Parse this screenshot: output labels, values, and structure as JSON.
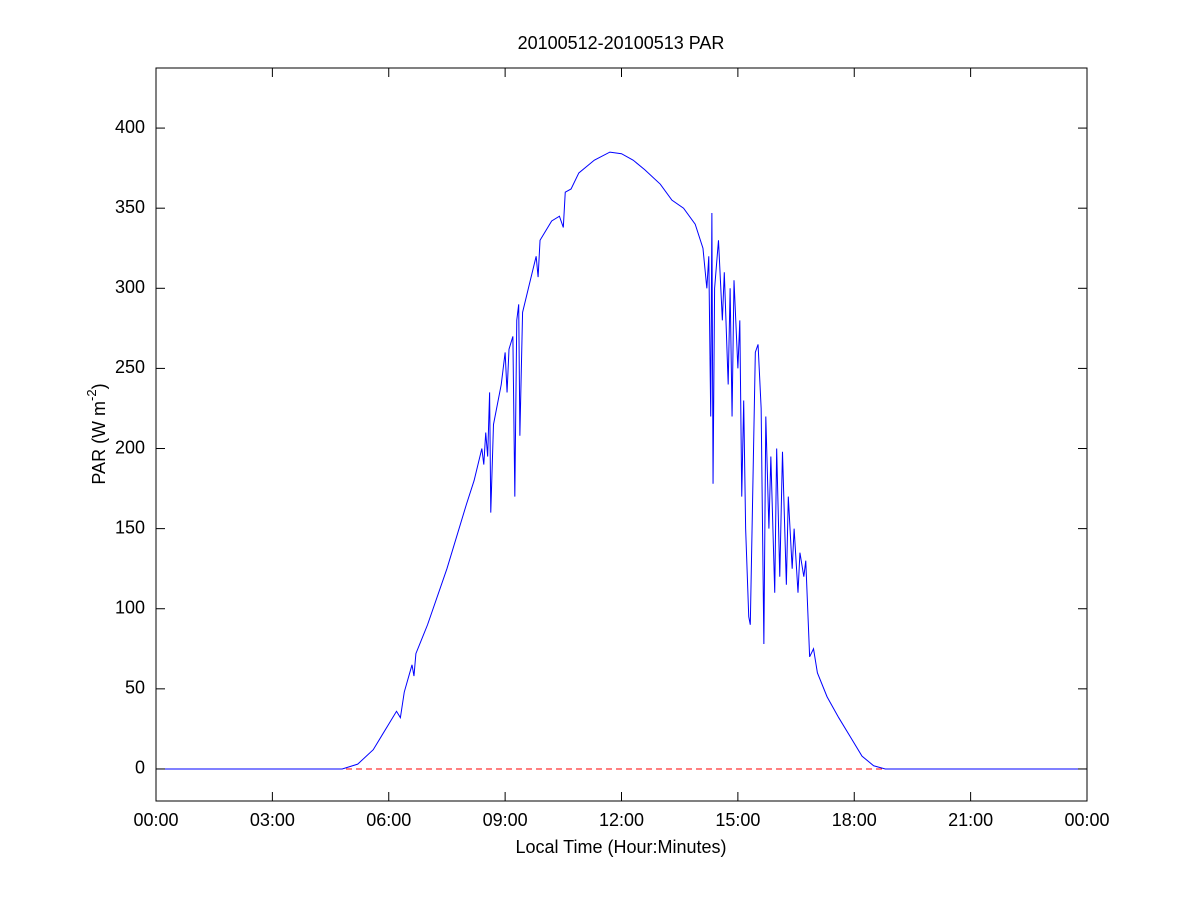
{
  "chart_data": {
    "type": "line",
    "title": "20100512-20100513 PAR",
    "xlabel": "Local Time (Hour:Minutes)",
    "ylabel": {
      "text": "PAR (W m",
      "superscript": "-2",
      "suffix": ")"
    },
    "x": [
      0,
      4.8,
      5.2,
      5.6,
      6.0,
      6.2,
      6.3,
      6.4,
      6.6,
      6.65,
      6.7,
      7.0,
      7.5,
      8.0,
      8.2,
      8.4,
      8.45,
      8.5,
      8.55,
      8.6,
      8.63,
      8.7,
      8.9,
      9.0,
      9.05,
      9.1,
      9.2,
      9.25,
      9.3,
      9.35,
      9.38,
      9.45,
      9.6,
      9.8,
      9.85,
      9.9,
      10.2,
      10.4,
      10.5,
      10.55,
      10.7,
      10.9,
      11.3,
      11.7,
      12.0,
      12.3,
      12.6,
      13.0,
      13.3,
      13.6,
      13.9,
      14.1,
      14.2,
      14.25,
      14.3,
      14.33,
      14.36,
      14.4,
      14.5,
      14.6,
      14.65,
      14.75,
      14.8,
      14.85,
      14.9,
      15.0,
      15.05,
      15.1,
      15.15,
      15.2,
      15.28,
      15.32,
      15.45,
      15.52,
      15.6,
      15.67,
      15.72,
      15.8,
      15.85,
      15.95,
      16.0,
      16.08,
      16.15,
      16.25,
      16.3,
      16.4,
      16.45,
      16.55,
      16.6,
      16.7,
      16.75,
      16.85,
      16.95,
      17.05,
      17.3,
      17.6,
      17.9,
      18.2,
      18.5,
      18.8,
      24
    ],
    "series": [
      {
        "name": "PAR",
        "color": "#0000ff",
        "values": [
          0,
          0,
          3,
          12,
          28,
          36,
          32,
          48,
          65,
          58,
          72,
          90,
          125,
          165,
          180,
          200,
          190,
          210,
          195,
          235,
          160,
          215,
          240,
          260,
          235,
          262,
          270,
          170,
          280,
          290,
          208,
          285,
          300,
          320,
          307,
          330,
          342,
          345,
          338,
          360,
          362,
          372,
          380,
          385,
          384,
          380,
          374,
          365,
          355,
          350,
          340,
          325,
          300,
          320,
          220,
          347,
          178,
          300,
          330,
          280,
          310,
          240,
          300,
          220,
          305,
          250,
          280,
          170,
          230,
          150,
          95,
          90,
          260,
          265,
          225,
          78,
          220,
          150,
          195,
          110,
          200,
          120,
          198,
          115,
          170,
          125,
          150,
          110,
          135,
          120,
          130,
          70,
          75,
          60,
          45,
          32,
          20,
          8,
          2,
          0,
          0
        ]
      }
    ],
    "reference_line": {
      "value": 0,
      "color": "#ff0000",
      "style": "dashed"
    },
    "xlim": [
      0,
      24
    ],
    "xticks": [
      {
        "value": 0,
        "label": "00:00"
      },
      {
        "value": 3,
        "label": "03:00"
      },
      {
        "value": 6,
        "label": "06:00"
      },
      {
        "value": 9,
        "label": "09:00"
      },
      {
        "value": 12,
        "label": "12:00"
      },
      {
        "value": 15,
        "label": "15:00"
      },
      {
        "value": 18,
        "label": "18:00"
      },
      {
        "value": 21,
        "label": "21:00"
      },
      {
        "value": 24,
        "label": "00:00"
      }
    ],
    "ylim": [
      -20,
      437.5
    ],
    "yticks": [
      0,
      50,
      100,
      150,
      200,
      250,
      300,
      350,
      400
    ],
    "grid": false
  }
}
